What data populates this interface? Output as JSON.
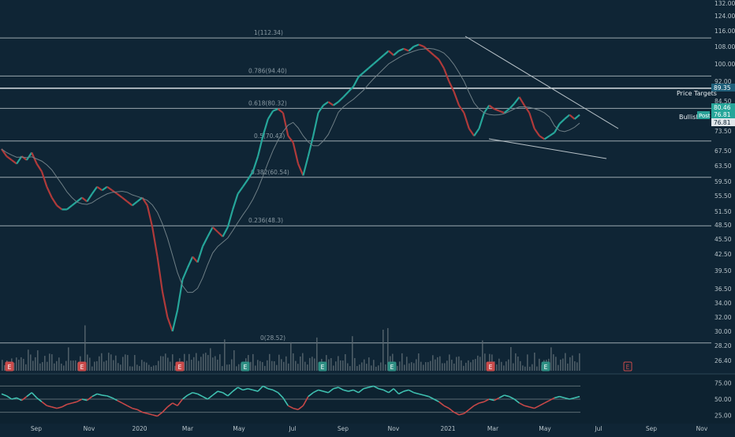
{
  "chart_data": {
    "type": "line",
    "background": "#0f2535",
    "panel_background": "#0d2230",
    "up_color": "#26a69a",
    "down_color": "#b03a3a",
    "price_axis": {
      "ticks": [
        132.0,
        124.0,
        116.0,
        108.0,
        100.0,
        92.0,
        84.5,
        80.46,
        76.81,
        73.5,
        67.5,
        63.5,
        59.5,
        55.5,
        51.5,
        48.5,
        45.5,
        42.5,
        39.5,
        36.5,
        34.0,
        32.0,
        30.0,
        28.2,
        26.4
      ],
      "ylim": [
        26.4,
        132.0
      ]
    },
    "time_axis": {
      "labels": [
        "Sep",
        "Nov",
        "2020",
        "Mar",
        "May",
        "Jul",
        "Sep",
        "Nov",
        "2021",
        "Mar",
        "May",
        "Jul",
        "Sep",
        "Nov"
      ]
    },
    "price_series": {
      "name": "",
      "values": [
        68,
        66,
        65,
        64,
        66,
        65,
        67,
        64,
        62,
        58,
        55,
        53,
        52,
        52,
        53,
        54,
        55,
        54,
        56,
        58,
        57,
        58,
        57,
        56,
        55,
        54,
        53,
        54,
        55,
        53,
        48,
        42,
        36,
        32,
        30,
        33,
        38,
        40,
        42,
        41,
        44,
        46,
        48,
        47,
        46,
        48,
        52,
        56,
        58,
        60,
        62,
        66,
        72,
        76,
        79,
        80,
        78,
        72,
        70,
        64,
        61,
        66,
        72,
        78,
        82,
        84,
        82,
        84,
        86,
        88,
        90,
        94,
        96,
        98,
        100,
        102,
        104,
        106,
        104,
        106,
        107,
        106,
        108,
        109,
        108,
        106,
        104,
        102,
        98,
        92,
        88,
        82,
        78,
        74,
        72,
        74,
        78,
        82,
        80,
        79,
        78,
        80,
        83,
        86,
        82,
        78,
        74,
        72,
        71,
        72,
        73,
        75,
        76,
        77,
        76,
        77
      ]
    },
    "fibonacci": [
      {
        "label": "1(112.34)",
        "value": 112.34
      },
      {
        "label": "0.786(94.40)",
        "value": 94.4
      },
      {
        "label": "0.618(80.32)",
        "value": 80.32
      },
      {
        "label": "0.5(70.43)",
        "value": 70.43
      },
      {
        "label": "0.382(60.54)",
        "value": 60.54
      },
      {
        "label": "0.236(48.3)",
        "value": 48.3
      },
      {
        "label": "0(28.52)",
        "value": 28.52
      }
    ],
    "extra_levels": [
      89.35
    ],
    "price_labels": {
      "target": {
        "text": "89.35",
        "value": 89.35,
        "color": "#1f5f7a"
      },
      "post": {
        "text": "Post",
        "value": 81.5,
        "color": "#2aa198"
      },
      "current1": {
        "text": "80.46",
        "value": 80.46,
        "color": "#26a69a"
      },
      "current2": {
        "text": "76.81",
        "value": 76.81,
        "color": "#26a69a"
      },
      "last": {
        "text": "76.81",
        "value": 76.81,
        "color": "#e0e0e0"
      }
    },
    "annotations": {
      "price_targets": "Price Targets",
      "bullish": "Bullish",
      "post": "Post"
    },
    "earnings_markers": [
      {
        "label": "E",
        "type": "red"
      },
      {
        "label": "E",
        "type": "red"
      },
      {
        "label": "E",
        "type": "red"
      },
      {
        "label": "E",
        "type": "green"
      },
      {
        "label": "E",
        "type": "green"
      },
      {
        "label": "E",
        "type": "green"
      },
      {
        "label": "E",
        "type": "red"
      },
      {
        "label": "E",
        "type": "green"
      },
      {
        "label": "E",
        "type": "outline"
      }
    ],
    "oscillator": {
      "ticks": [
        75.0,
        50.0,
        25.0
      ],
      "levels": [
        70,
        50,
        30
      ],
      "values": [
        58,
        55,
        50,
        52,
        48,
        54,
        60,
        52,
        46,
        40,
        38,
        36,
        38,
        42,
        44,
        46,
        50,
        48,
        54,
        58,
        56,
        55,
        52,
        48,
        44,
        40,
        36,
        34,
        30,
        28,
        26,
        24,
        30,
        38,
        44,
        40,
        50,
        56,
        60,
        58,
        54,
        50,
        56,
        62,
        60,
        55,
        62,
        68,
        64,
        66,
        64,
        62,
        70,
        66,
        64,
        60,
        52,
        40,
        36,
        34,
        40,
        54,
        60,
        64,
        62,
        60,
        66,
        68,
        64,
        62,
        64,
        60,
        66,
        68,
        70,
        66,
        64,
        60,
        66,
        58,
        62,
        64,
        60,
        58,
        56,
        54,
        50,
        46,
        40,
        36,
        30,
        26,
        28,
        34,
        40,
        44,
        46,
        50,
        48,
        52,
        56,
        54,
        50,
        44,
        40,
        38,
        36,
        40,
        44,
        48,
        52,
        54,
        52,
        50,
        52,
        54
      ]
    }
  }
}
